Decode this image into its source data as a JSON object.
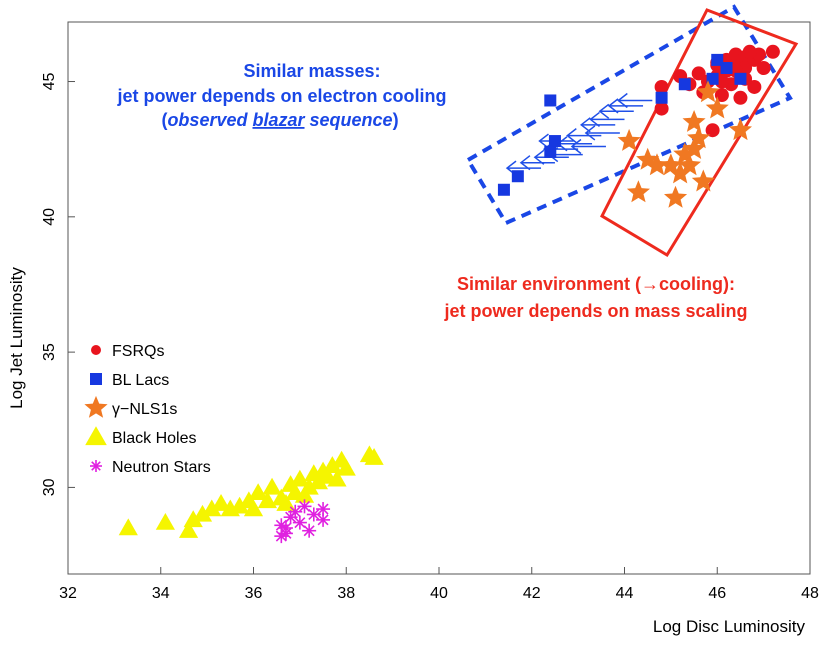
{
  "chart_data": {
    "type": "scatter",
    "xlabel": "Log Disc Luminosity",
    "ylabel": "Log Jet Luminosity",
    "xlim": [
      32,
      48
    ],
    "ylim": [
      26.8,
      47.2
    ],
    "x_ticks": [
      "32",
      "34",
      "36",
      "38",
      "40",
      "42",
      "44",
      "46",
      "48"
    ],
    "y_ticks": [
      "30",
      "35",
      "40",
      "45"
    ],
    "legend_position": "left-middle",
    "grid": false,
    "series": [
      {
        "name": "FSRQs",
        "marker": "circle",
        "color": "#e8141e",
        "points": [
          [
            44.8,
            44.8
          ],
          [
            44.8,
            44.0
          ],
          [
            45.2,
            45.2
          ],
          [
            45.4,
            44.9
          ],
          [
            45.6,
            45.3
          ],
          [
            45.8,
            45.0
          ],
          [
            46.0,
            45.6
          ],
          [
            46.0,
            45.2
          ],
          [
            46.2,
            45.8
          ],
          [
            46.2,
            45.4
          ],
          [
            46.4,
            46.0
          ],
          [
            46.4,
            45.6
          ],
          [
            46.5,
            45.2
          ],
          [
            46.6,
            45.9
          ],
          [
            46.6,
            45.5
          ],
          [
            46.8,
            45.8
          ],
          [
            46.8,
            44.8
          ],
          [
            46.9,
            46.0
          ],
          [
            47.0,
            45.5
          ],
          [
            47.2,
            46.1
          ],
          [
            46.3,
            44.9
          ],
          [
            46.5,
            44.4
          ],
          [
            45.9,
            43.2
          ],
          [
            46.1,
            44.5
          ],
          [
            46.7,
            46.1
          ],
          [
            46.0,
            45.7
          ],
          [
            46.4,
            45.4
          ],
          [
            46.6,
            45.1
          ],
          [
            46.1,
            45.0
          ],
          [
            45.7,
            44.6
          ]
        ]
      },
      {
        "name": "BL Lacs",
        "marker": "square",
        "color": "#1638e0",
        "points": [
          [
            42.4,
            44.3
          ],
          [
            42.5,
            42.8
          ],
          [
            42.4,
            42.4
          ],
          [
            41.7,
            41.5
          ],
          [
            41.4,
            41.0
          ],
          [
            44.8,
            44.4
          ],
          [
            45.3,
            44.9
          ],
          [
            45.9,
            45.1
          ],
          [
            46.0,
            45.8
          ],
          [
            46.5,
            45.1
          ],
          [
            46.2,
            45.5
          ]
        ]
      },
      {
        "name": "γ−NLS1s",
        "marker": "star",
        "color": "#f07822",
        "points": [
          [
            44.1,
            42.8
          ],
          [
            44.3,
            40.9
          ],
          [
            44.5,
            42.1
          ],
          [
            44.7,
            41.9
          ],
          [
            45.1,
            40.7
          ],
          [
            45.2,
            41.6
          ],
          [
            45.3,
            42.3
          ],
          [
            45.4,
            41.9
          ],
          [
            45.5,
            42.5
          ],
          [
            45.6,
            42.9
          ],
          [
            45.7,
            41.3
          ],
          [
            45.5,
            43.5
          ],
          [
            46.0,
            44.0
          ],
          [
            46.5,
            43.2
          ],
          [
            45.8,
            44.6
          ],
          [
            45.0,
            41.9
          ]
        ]
      },
      {
        "name": "Black Holes",
        "marker": "triangle",
        "color": "#f5f500",
        "points": [
          [
            33.3,
            28.5
          ],
          [
            34.1,
            28.7
          ],
          [
            34.6,
            28.4
          ],
          [
            34.7,
            28.8
          ],
          [
            34.9,
            29.0
          ],
          [
            35.1,
            29.2
          ],
          [
            35.3,
            29.4
          ],
          [
            35.5,
            29.2
          ],
          [
            35.7,
            29.3
          ],
          [
            35.9,
            29.5
          ],
          [
            36.0,
            29.2
          ],
          [
            36.1,
            29.8
          ],
          [
            36.3,
            29.5
          ],
          [
            36.4,
            30.0
          ],
          [
            36.6,
            29.6
          ],
          [
            36.8,
            30.1
          ],
          [
            36.9,
            29.8
          ],
          [
            37.0,
            30.3
          ],
          [
            37.2,
            30.0
          ],
          [
            37.3,
            30.5
          ],
          [
            37.4,
            30.2
          ],
          [
            37.5,
            30.6
          ],
          [
            37.6,
            30.4
          ],
          [
            37.7,
            30.8
          ],
          [
            37.8,
            30.3
          ],
          [
            37.9,
            31.0
          ],
          [
            38.0,
            30.7
          ],
          [
            38.5,
            31.2
          ],
          [
            38.6,
            31.1
          ],
          [
            36.7,
            29.4
          ],
          [
            37.1,
            29.7
          ]
        ]
      },
      {
        "name": "Neutron Stars",
        "marker": "asterisk",
        "color": "#e020e0",
        "points": [
          [
            36.6,
            28.6
          ],
          [
            36.6,
            28.2
          ],
          [
            36.7,
            28.5
          ],
          [
            36.8,
            28.9
          ],
          [
            36.9,
            29.1
          ],
          [
            37.0,
            28.7
          ],
          [
            37.1,
            29.3
          ],
          [
            37.2,
            28.4
          ],
          [
            37.3,
            29.0
          ],
          [
            37.5,
            29.2
          ],
          [
            37.5,
            28.8
          ],
          [
            36.7,
            28.3
          ]
        ]
      },
      {
        "name": "",
        "marker": "arrow-left",
        "color": "#2050e8",
        "points": [
          [
            44.4,
            44.1
          ],
          [
            44.2,
            43.9
          ],
          [
            44.0,
            43.6
          ],
          [
            43.8,
            43.4
          ],
          [
            43.5,
            43.0
          ],
          [
            43.3,
            42.7
          ],
          [
            43.0,
            42.5
          ],
          [
            42.8,
            42.2
          ],
          [
            42.5,
            42.0
          ],
          [
            42.2,
            41.8
          ],
          [
            44.6,
            44.3
          ],
          [
            43.9,
            43.1
          ],
          [
            43.1,
            42.3
          ],
          [
            42.9,
            42.8
          ],
          [
            43.6,
            42.6
          ]
        ]
      }
    ],
    "annotations": [
      {
        "lines": [
          "Similar masses:",
          "jet power depends on electron cooling"
        ],
        "line3_open": "(",
        "line3_italic1": "observed ",
        "line3_italic2": "blazar",
        "line3_italic3": " sequence",
        "line3_close": ")",
        "color": "#1a47e6"
      },
      {
        "lines": [
          "Similar environment (→cooling):",
          "jet power depends on mass scaling"
        ],
        "color": "#ee2a1e"
      }
    ]
  }
}
